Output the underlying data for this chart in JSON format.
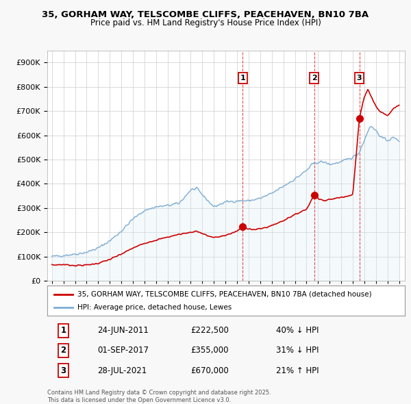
{
  "title_line1": "35, GORHAM WAY, TELSCOMBE CLIFFS, PEACEHAVEN, BN10 7BA",
  "title_line2": "Price paid vs. HM Land Registry's House Price Index (HPI)",
  "legend_label_red": "35, GORHAM WAY, TELSCOMBE CLIFFS, PEACEHAVEN, BN10 7BA (detached house)",
  "legend_label_blue": "HPI: Average price, detached house, Lewes",
  "transactions": [
    {
      "num": 1,
      "date": "24-JUN-2011",
      "price": 222500,
      "hpi_pct": "40% ↓ HPI",
      "x": 2011.48
    },
    {
      "num": 2,
      "date": "01-SEP-2017",
      "price": 355000,
      "hpi_pct": "31% ↓ HPI",
      "x": 2017.67
    },
    {
      "num": 3,
      "date": "28-JUL-2021",
      "price": 670000,
      "hpi_pct": "21% ↑ HPI",
      "x": 2021.57
    }
  ],
  "vline_color": "#dd0000",
  "red_color": "#cc0000",
  "blue_color": "#7dadd4",
  "blue_fill": "#d6e8f5",
  "background_color": "#f8f8f8",
  "plot_bg_color": "#ffffff",
  "grid_color": "#cccccc",
  "ylim": [
    0,
    950000
  ],
  "xlim_start": 1994.6,
  "xlim_end": 2025.5,
  "footnote": "Contains HM Land Registry data © Crown copyright and database right 2025.\nThis data is licensed under the Open Government Licence v3.0."
}
